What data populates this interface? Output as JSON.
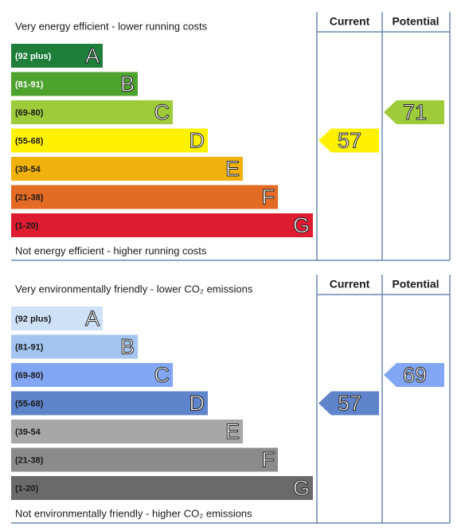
{
  "chart_data": [
    {
      "type": "epc",
      "top_label": "Very energy efficient - lower running costs",
      "bottom_label": "Not energy efficient - higher running costs",
      "columns": [
        "Current",
        "Potential"
      ],
      "bands": [
        {
          "range": "(92 plus)",
          "letter": "A",
          "color": "#1f7e3a",
          "label_color": "#ffffff"
        },
        {
          "range": "(81-91)",
          "letter": "B",
          "color": "#4ea22e",
          "label_color": "#ffffff"
        },
        {
          "range": "(69-80)",
          "letter": "C",
          "color": "#9dcb3a",
          "label_color": "#1a1a1a"
        },
        {
          "range": "(55-68)",
          "letter": "D",
          "color": "#fff200",
          "label_color": "#1a1a1a"
        },
        {
          "range": "(39-54",
          "letter": "E",
          "color": "#f0b10c",
          "label_color": "#1a1a1a"
        },
        {
          "range": "(21-38)",
          "letter": "F",
          "color": "#e46b24",
          "label_color": "#1a1a1a"
        },
        {
          "range": "(1-20)",
          "letter": "G",
          "color": "#dd1c30",
          "label_color": "#1a1a1a"
        }
      ],
      "current": 57,
      "potential": 71
    },
    {
      "type": "epc",
      "top_label": "Very environmentally friendly - lower CO₂ emissions",
      "bottom_label": "Not environmentally friendly - higher CO₂ emissions",
      "columns": [
        "Current",
        "Potential"
      ],
      "bands": [
        {
          "range": "(92 plus)",
          "letter": "A",
          "color": "#cfe1f7",
          "label_color": "#1a1a1a"
        },
        {
          "range": "(81-91)",
          "letter": "B",
          "color": "#a3c5ef",
          "label_color": "#1a1a1a"
        },
        {
          "range": "(69-80)",
          "letter": "C",
          "color": "#82a6f3",
          "label_color": "#1a1a1a"
        },
        {
          "range": "(55-68)",
          "letter": "D",
          "color": "#5f84c9",
          "label_color": "#1a1a1a"
        },
        {
          "range": "(39-54",
          "letter": "E",
          "color": "#a7a7a7",
          "label_color": "#1a1a1a"
        },
        {
          "range": "(21-38)",
          "letter": "F",
          "color": "#8b8b8b",
          "label_color": "#1a1a1a"
        },
        {
          "range": "(1-20)",
          "letter": "G",
          "color": "#6a6a6a",
          "label_color": "#1a1a1a"
        }
      ],
      "current": 57,
      "potential": 69
    }
  ]
}
